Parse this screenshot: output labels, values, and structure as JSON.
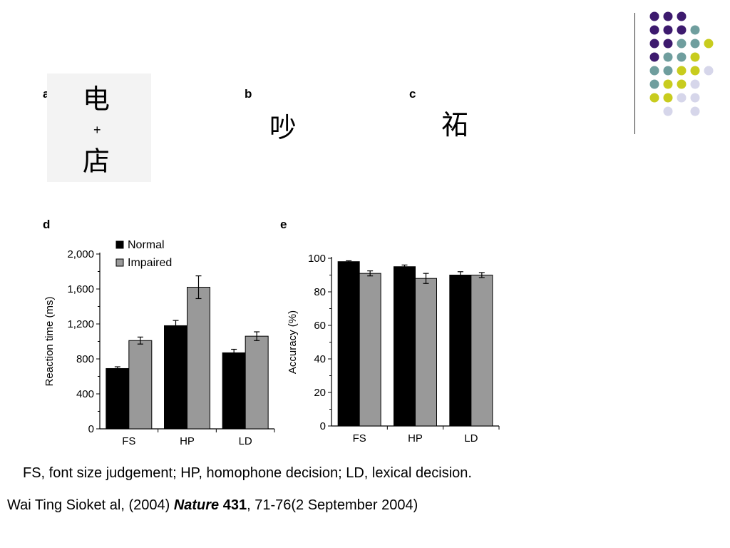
{
  "decor": {
    "dot_colors": {
      "purple": "#3d1a6e",
      "teal": "#6f9e9e",
      "yellow": "#c8cc1e",
      "lavender": "#d6d6ea"
    },
    "dot_grid": [
      [
        "purple",
        "purple",
        "purple",
        null,
        null
      ],
      [
        "purple",
        "purple",
        "purple",
        "teal",
        null
      ],
      [
        "purple",
        "purple",
        "teal",
        "teal",
        "yellow"
      ],
      [
        "purple",
        "teal",
        "teal",
        "yellow",
        null
      ],
      [
        "teal",
        "teal",
        "yellow",
        "yellow",
        "lavender"
      ],
      [
        "teal",
        "yellow",
        "yellow",
        "lavender",
        null
      ],
      [
        "yellow",
        "yellow",
        "lavender",
        "lavender",
        null
      ],
      [
        null,
        "lavender",
        null,
        "lavender",
        null
      ]
    ]
  },
  "panels": {
    "a": {
      "label": "a",
      "top_char": "电",
      "plus": "+",
      "bottom_char": "店"
    },
    "b": {
      "label": "b",
      "char": "吵"
    },
    "c": {
      "label": "c",
      "char": "祏"
    },
    "d": {
      "label": "d"
    },
    "e": {
      "label": "e"
    }
  },
  "chart_data": [
    {
      "panel": "d",
      "type": "bar",
      "categories": [
        "FS",
        "HP",
        "LD"
      ],
      "series": [
        {
          "name": "Normal",
          "color": "#000000",
          "values": [
            690,
            1180,
            870
          ],
          "errors": [
            20,
            60,
            40
          ]
        },
        {
          "name": "Impaired",
          "color": "#999999",
          "values": [
            1010,
            1620,
            1060
          ],
          "errors": [
            40,
            130,
            50
          ]
        }
      ],
      "ylabel": "Reaction time (ms)",
      "ylim": [
        0,
        2000
      ],
      "yticks": [
        0,
        400,
        800,
        1200,
        1600,
        2000
      ],
      "ytick_labels": [
        "0",
        "400",
        "800",
        "1,200",
        "1,600",
        "2,000"
      ],
      "legend": "top-left",
      "grid": false
    },
    {
      "panel": "e",
      "type": "bar",
      "categories": [
        "FS",
        "HP",
        "LD"
      ],
      "series": [
        {
          "color": "#000000",
          "values": [
            98,
            95,
            90
          ],
          "errors": [
            0.5,
            1,
            2
          ]
        },
        {
          "color": "#999999",
          "values": [
            91,
            88,
            90
          ],
          "errors": [
            1.5,
            3,
            1.5
          ]
        }
      ],
      "ylabel": "Accuracy (%)",
      "ylim": [
        0,
        100
      ],
      "yticks": [
        0,
        20,
        40,
        60,
        80,
        100
      ],
      "ytick_labels": [
        "0",
        "20",
        "40",
        "60",
        "80",
        "100"
      ],
      "grid": false
    }
  ],
  "caption": {
    "line1": "FS, font size judgement; HP, homophone decision; LD, lexical decision.",
    "citation": {
      "prefix": "Wai Ting Sioket al, (2004) ",
      "journal": "Nature",
      "space": " ",
      "volume": "431",
      "suffix": ", 71-76(2 September 2004)"
    }
  }
}
